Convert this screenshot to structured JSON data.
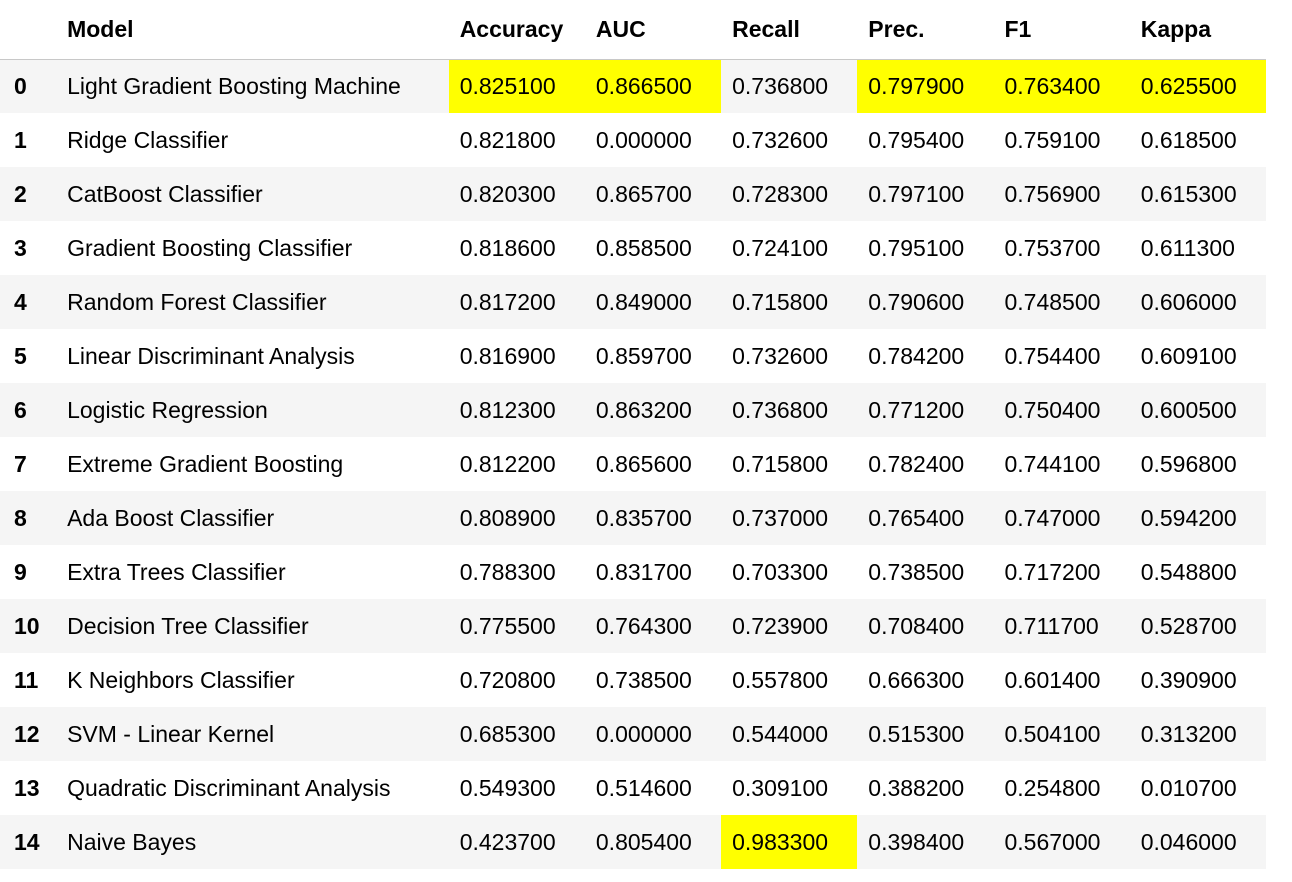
{
  "table": {
    "columns": [
      "",
      "Model",
      "Accuracy",
      "AUC",
      "Recall",
      "Prec.",
      "F1",
      "Kappa"
    ],
    "highlight_color": "#ffff00",
    "rows": [
      {
        "index": "0",
        "model": "Light Gradient Boosting Machine",
        "accuracy": "0.825100",
        "auc": "0.866500",
        "recall": "0.736800",
        "prec": "0.797900",
        "f1": "0.763400",
        "kappa": "0.625500",
        "highlighted": [
          "accuracy",
          "auc",
          "prec",
          "f1",
          "kappa"
        ]
      },
      {
        "index": "1",
        "model": "Ridge Classifier",
        "accuracy": "0.821800",
        "auc": "0.000000",
        "recall": "0.732600",
        "prec": "0.795400",
        "f1": "0.759100",
        "kappa": "0.618500",
        "highlighted": []
      },
      {
        "index": "2",
        "model": "CatBoost Classifier",
        "accuracy": "0.820300",
        "auc": "0.865700",
        "recall": "0.728300",
        "prec": "0.797100",
        "f1": "0.756900",
        "kappa": "0.615300",
        "highlighted": []
      },
      {
        "index": "3",
        "model": "Gradient Boosting Classifier",
        "accuracy": "0.818600",
        "auc": "0.858500",
        "recall": "0.724100",
        "prec": "0.795100",
        "f1": "0.753700",
        "kappa": "0.611300",
        "highlighted": []
      },
      {
        "index": "4",
        "model": "Random Forest Classifier",
        "accuracy": "0.817200",
        "auc": "0.849000",
        "recall": "0.715800",
        "prec": "0.790600",
        "f1": "0.748500",
        "kappa": "0.606000",
        "highlighted": []
      },
      {
        "index": "5",
        "model": "Linear Discriminant Analysis",
        "accuracy": "0.816900",
        "auc": "0.859700",
        "recall": "0.732600",
        "prec": "0.784200",
        "f1": "0.754400",
        "kappa": "0.609100",
        "highlighted": []
      },
      {
        "index": "6",
        "model": "Logistic Regression",
        "accuracy": "0.812300",
        "auc": "0.863200",
        "recall": "0.736800",
        "prec": "0.771200",
        "f1": "0.750400",
        "kappa": "0.600500",
        "highlighted": []
      },
      {
        "index": "7",
        "model": "Extreme Gradient Boosting",
        "accuracy": "0.812200",
        "auc": "0.865600",
        "recall": "0.715800",
        "prec": "0.782400",
        "f1": "0.744100",
        "kappa": "0.596800",
        "highlighted": []
      },
      {
        "index": "8",
        "model": "Ada Boost Classifier",
        "accuracy": "0.808900",
        "auc": "0.835700",
        "recall": "0.737000",
        "prec": "0.765400",
        "f1": "0.747000",
        "kappa": "0.594200",
        "highlighted": []
      },
      {
        "index": "9",
        "model": "Extra Trees Classifier",
        "accuracy": "0.788300",
        "auc": "0.831700",
        "recall": "0.703300",
        "prec": "0.738500",
        "f1": "0.717200",
        "kappa": "0.548800",
        "highlighted": []
      },
      {
        "index": "10",
        "model": "Decision Tree Classifier",
        "accuracy": "0.775500",
        "auc": "0.764300",
        "recall": "0.723900",
        "prec": "0.708400",
        "f1": "0.711700",
        "kappa": "0.528700",
        "highlighted": []
      },
      {
        "index": "11",
        "model": "K Neighbors Classifier",
        "accuracy": "0.720800",
        "auc": "0.738500",
        "recall": "0.557800",
        "prec": "0.666300",
        "f1": "0.601400",
        "kappa": "0.390900",
        "highlighted": []
      },
      {
        "index": "12",
        "model": "SVM - Linear Kernel",
        "accuracy": "0.685300",
        "auc": "0.000000",
        "recall": "0.544000",
        "prec": "0.515300",
        "f1": "0.504100",
        "kappa": "0.313200",
        "highlighted": []
      },
      {
        "index": "13",
        "model": "Quadratic Discriminant Analysis",
        "accuracy": "0.549300",
        "auc": "0.514600",
        "recall": "0.309100",
        "prec": "0.388200",
        "f1": "0.254800",
        "kappa": "0.010700",
        "highlighted": []
      },
      {
        "index": "14",
        "model": "Naive Bayes",
        "accuracy": "0.423700",
        "auc": "0.805400",
        "recall": "0.983300",
        "prec": "0.398400",
        "f1": "0.567000",
        "kappa": "0.046000",
        "highlighted": [
          "recall"
        ]
      }
    ]
  }
}
